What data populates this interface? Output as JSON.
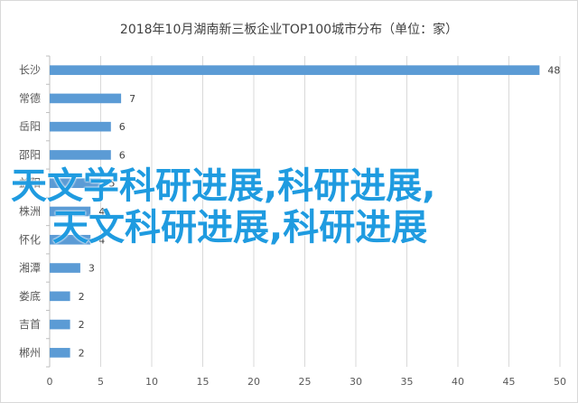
{
  "chart_data": {
    "type": "bar",
    "orientation": "horizontal",
    "title": "2018年10月湖南新三板企业TOP100城市分布（单位：家）",
    "categories": [
      "长沙",
      "常德",
      "岳阳",
      "邵阳",
      "益阳",
      "株洲",
      "怀化",
      "湘潭",
      "娄底",
      "吉首",
      "郴州"
    ],
    "values": [
      48,
      7,
      6,
      6,
      5,
      4,
      4,
      3,
      2,
      2,
      2
    ],
    "xlim": [
      0,
      50
    ],
    "xticks": [
      0,
      5,
      10,
      15,
      20,
      25,
      30,
      35,
      40,
      45,
      50
    ],
    "grid": true,
    "bar_color": "#5b9bd5",
    "data_labels": true
  },
  "overlay": {
    "line1": "天文学科研进展,科研进展,",
    "line2": "天文科研进展,科研进展",
    "color": "#1f9be0"
  }
}
